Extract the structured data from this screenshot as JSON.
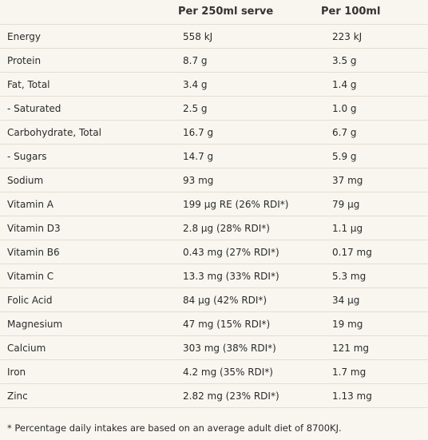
{
  "table": {
    "headers": [
      "",
      "Per 250ml serve",
      "Per 100ml"
    ],
    "rows": [
      {
        "nutrient": "Energy",
        "per_serve": "558 kJ",
        "per_100ml": "223 kJ"
      },
      {
        "nutrient": "Protein",
        "per_serve": "8.7 g",
        "per_100ml": "3.5 g"
      },
      {
        "nutrient": "Fat, Total",
        "per_serve": "3.4 g",
        "per_100ml": "1.4 g"
      },
      {
        "nutrient": "- Saturated",
        "per_serve": "2.5 g",
        "per_100ml": "1.0 g"
      },
      {
        "nutrient": "Carbohydrate, Total",
        "per_serve": "16.7 g",
        "per_100ml": "6.7 g"
      },
      {
        "nutrient": "- Sugars",
        "per_serve": "14.7 g",
        "per_100ml": "5.9 g"
      },
      {
        "nutrient": "Sodium",
        "per_serve": "93 mg",
        "per_100ml": "37 mg"
      },
      {
        "nutrient": "Vitamin A",
        "per_serve": "199 µg RE (26% RDI*)",
        "per_100ml": "79 µg"
      },
      {
        "nutrient": "Vitamin D3",
        "per_serve": "2.8 µg (28% RDI*)",
        "per_100ml": "1.1 µg"
      },
      {
        "nutrient": "Vitamin B6",
        "per_serve": "0.43 mg (27% RDI*)",
        "per_100ml": "0.17 mg"
      },
      {
        "nutrient": "Vitamin C",
        "per_serve": "13.3 mg (33% RDI*)",
        "per_100ml": "5.3 mg"
      },
      {
        "nutrient": "Folic Acid",
        "per_serve": "84 µg (42% RDI*)",
        "per_100ml": "34 µg"
      },
      {
        "nutrient": "Magnesium",
        "per_serve": "47 mg (15% RDI*)",
        "per_100ml": "19 mg"
      },
      {
        "nutrient": "Calcium",
        "per_serve": "303 mg (38% RDI*)",
        "per_100ml": "121 mg"
      },
      {
        "nutrient": "Iron",
        "per_serve": "4.2 mg (35% RDI*)",
        "per_100ml": "1.7 mg"
      },
      {
        "nutrient": "Zinc",
        "per_serve": "2.82 mg (23% RDI*)",
        "per_100ml": "1.13 mg"
      }
    ]
  },
  "footnote": "* Percentage daily intakes are based on an average adult diet of 8700KJ."
}
